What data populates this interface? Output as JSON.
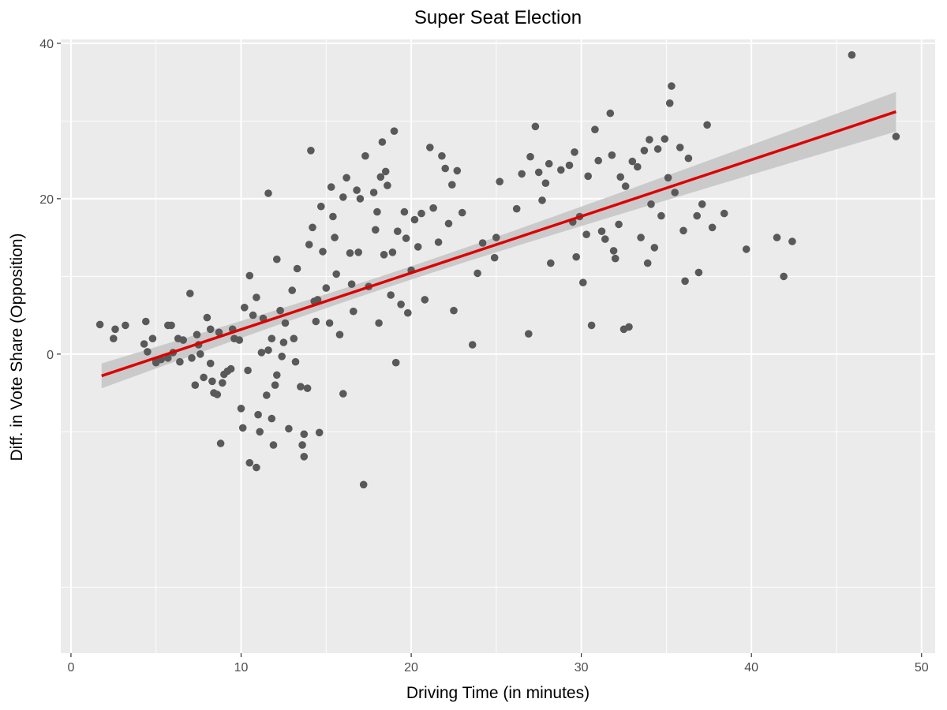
{
  "chart_data": {
    "type": "scatter",
    "title": "Super Seat Election",
    "xlabel": "Driving Time (in minutes)",
    "ylabel": "Diff. in Vote Share (Opposition)",
    "xlim": [
      -0.6,
      50.8
    ],
    "ylim": [
      -38.5,
      40.5
    ],
    "xticks": [
      0,
      10,
      20,
      30,
      40,
      50
    ],
    "yticks": [
      0,
      20,
      40
    ],
    "grid": true,
    "colors": {
      "panel": "#ebebeb",
      "grid": "#ffffff",
      "points": "#595959",
      "fit_line": "#dd0000",
      "confidence_band": "#c8c8c8"
    },
    "fit": {
      "method": "linear",
      "x": [
        1.8,
        48.5
      ],
      "y": [
        -2.8,
        31.2
      ],
      "ci_lower": [
        -4.4,
        28.7
      ],
      "ci_upper": [
        -1.2,
        33.8
      ]
    },
    "points": [
      [
        1.7,
        3.8
      ],
      [
        2.5,
        2.0
      ],
      [
        2.6,
        3.2
      ],
      [
        3.2,
        3.7
      ],
      [
        4.3,
        1.3
      ],
      [
        4.4,
        4.2
      ],
      [
        4.5,
        0.3
      ],
      [
        4.8,
        2.0
      ],
      [
        5.0,
        -0.8
      ],
      [
        5.0,
        -1.1
      ],
      [
        5.3,
        -0.7
      ],
      [
        5.7,
        3.7
      ],
      [
        5.7,
        -0.5
      ],
      [
        5.9,
        3.7
      ],
      [
        6.0,
        0.2
      ],
      [
        6.3,
        2.0
      ],
      [
        6.4,
        -1.0
      ],
      [
        6.6,
        1.8
      ],
      [
        7.0,
        7.8
      ],
      [
        7.1,
        -0.5
      ],
      [
        7.3,
        -4.0
      ],
      [
        7.4,
        2.5
      ],
      [
        7.5,
        1.2
      ],
      [
        7.6,
        0.0
      ],
      [
        7.8,
        -3.0
      ],
      [
        8.0,
        4.7
      ],
      [
        8.2,
        3.2
      ],
      [
        8.2,
        -1.2
      ],
      [
        8.3,
        -3.5
      ],
      [
        8.4,
        -5.0
      ],
      [
        8.6,
        -5.2
      ],
      [
        8.7,
        2.8
      ],
      [
        8.8,
        -11.5
      ],
      [
        8.9,
        -3.7
      ],
      [
        9.0,
        -2.6
      ],
      [
        9.2,
        -2.2
      ],
      [
        9.4,
        -1.9
      ],
      [
        9.5,
        3.2
      ],
      [
        9.6,
        2.0
      ],
      [
        9.9,
        1.8
      ],
      [
        10.0,
        -7.0
      ],
      [
        10.1,
        -9.5
      ],
      [
        10.2,
        6.0
      ],
      [
        10.4,
        -2.1
      ],
      [
        10.5,
        10.1
      ],
      [
        10.5,
        -14.0
      ],
      [
        10.7,
        5.0
      ],
      [
        10.9,
        7.3
      ],
      [
        10.9,
        -14.6
      ],
      [
        11.0,
        -7.8
      ],
      [
        11.1,
        -10.0
      ],
      [
        11.2,
        0.2
      ],
      [
        11.3,
        4.6
      ],
      [
        11.5,
        -5.3
      ],
      [
        11.6,
        0.5
      ],
      [
        11.6,
        20.7
      ],
      [
        11.8,
        2.0
      ],
      [
        11.8,
        -8.3
      ],
      [
        11.9,
        -11.7
      ],
      [
        12.0,
        -4.0
      ],
      [
        12.1,
        -2.7
      ],
      [
        12.1,
        12.2
      ],
      [
        12.3,
        5.6
      ],
      [
        12.4,
        -0.3
      ],
      [
        12.5,
        1.5
      ],
      [
        12.6,
        4.0
      ],
      [
        12.8,
        -9.6
      ],
      [
        13.0,
        8.2
      ],
      [
        13.1,
        2.0
      ],
      [
        13.2,
        -1.0
      ],
      [
        13.3,
        11.0
      ],
      [
        13.5,
        -4.2
      ],
      [
        13.6,
        -11.7
      ],
      [
        13.7,
        -13.2
      ],
      [
        13.7,
        -10.3
      ],
      [
        13.9,
        -4.4
      ],
      [
        14.0,
        14.1
      ],
      [
        14.1,
        26.2
      ],
      [
        14.2,
        16.3
      ],
      [
        14.3,
        6.8
      ],
      [
        14.4,
        4.2
      ],
      [
        14.5,
        7.0
      ],
      [
        14.6,
        -10.1
      ],
      [
        14.7,
        19.0
      ],
      [
        14.8,
        13.2
      ],
      [
        15.0,
        8.5
      ],
      [
        15.2,
        4.0
      ],
      [
        15.3,
        21.5
      ],
      [
        15.4,
        17.7
      ],
      [
        15.5,
        15.0
      ],
      [
        15.6,
        10.3
      ],
      [
        15.8,
        2.5
      ],
      [
        16.0,
        20.2
      ],
      [
        16.0,
        -5.1
      ],
      [
        16.2,
        22.7
      ],
      [
        16.4,
        13.0
      ],
      [
        16.5,
        9.0
      ],
      [
        16.6,
        5.5
      ],
      [
        16.8,
        21.1
      ],
      [
        16.9,
        13.1
      ],
      [
        17.0,
        20.0
      ],
      [
        17.2,
        -16.8
      ],
      [
        17.3,
        25.5
      ],
      [
        17.5,
        8.7
      ],
      [
        17.8,
        20.8
      ],
      [
        17.9,
        16.0
      ],
      [
        18.0,
        18.3
      ],
      [
        18.1,
        4.0
      ],
      [
        18.2,
        22.8
      ],
      [
        18.3,
        27.3
      ],
      [
        18.4,
        12.8
      ],
      [
        18.5,
        23.5
      ],
      [
        18.6,
        21.7
      ],
      [
        18.8,
        7.6
      ],
      [
        18.9,
        13.1
      ],
      [
        19.0,
        28.7
      ],
      [
        19.1,
        -1.1
      ],
      [
        19.2,
        15.8
      ],
      [
        19.4,
        6.4
      ],
      [
        19.6,
        18.3
      ],
      [
        19.7,
        14.9
      ],
      [
        19.8,
        5.3
      ],
      [
        20.0,
        10.8
      ],
      [
        20.2,
        17.3
      ],
      [
        20.4,
        13.8
      ],
      [
        20.6,
        18.1
      ],
      [
        20.8,
        7.0
      ],
      [
        21.1,
        26.6
      ],
      [
        21.3,
        18.8
      ],
      [
        21.6,
        14.4
      ],
      [
        21.8,
        25.5
      ],
      [
        22.0,
        23.9
      ],
      [
        22.2,
        16.8
      ],
      [
        22.4,
        21.8
      ],
      [
        22.5,
        5.6
      ],
      [
        22.7,
        23.6
      ],
      [
        23.0,
        18.2
      ],
      [
        23.6,
        1.2
      ],
      [
        23.9,
        10.4
      ],
      [
        24.2,
        14.3
      ],
      [
        24.9,
        12.4
      ],
      [
        25.0,
        15.0
      ],
      [
        25.2,
        22.2
      ],
      [
        26.2,
        18.7
      ],
      [
        26.5,
        23.2
      ],
      [
        26.9,
        2.6
      ],
      [
        27.0,
        25.4
      ],
      [
        27.3,
        29.3
      ],
      [
        27.5,
        23.4
      ],
      [
        27.7,
        19.8
      ],
      [
        27.9,
        22.0
      ],
      [
        28.1,
        24.5
      ],
      [
        28.2,
        11.7
      ],
      [
        28.8,
        23.7
      ],
      [
        29.3,
        24.3
      ],
      [
        29.5,
        17.0
      ],
      [
        29.6,
        26.0
      ],
      [
        29.7,
        12.5
      ],
      [
        29.9,
        17.7
      ],
      [
        30.1,
        9.2
      ],
      [
        30.3,
        15.4
      ],
      [
        30.4,
        22.9
      ],
      [
        30.6,
        3.7
      ],
      [
        30.8,
        28.9
      ],
      [
        31.0,
        24.9
      ],
      [
        31.2,
        15.8
      ],
      [
        31.4,
        14.8
      ],
      [
        31.7,
        31.0
      ],
      [
        31.8,
        25.6
      ],
      [
        31.9,
        13.3
      ],
      [
        32.0,
        12.3
      ],
      [
        32.2,
        16.7
      ],
      [
        32.3,
        22.8
      ],
      [
        32.5,
        3.2
      ],
      [
        32.6,
        21.6
      ],
      [
        32.8,
        3.5
      ],
      [
        33.0,
        24.8
      ],
      [
        33.3,
        24.1
      ],
      [
        33.5,
        15.0
      ],
      [
        33.7,
        26.2
      ],
      [
        33.9,
        11.7
      ],
      [
        34.0,
        27.6
      ],
      [
        34.1,
        19.3
      ],
      [
        34.3,
        13.7
      ],
      [
        34.5,
        26.4
      ],
      [
        34.7,
        17.8
      ],
      [
        34.9,
        27.7
      ],
      [
        35.1,
        22.7
      ],
      [
        35.2,
        32.3
      ],
      [
        35.3,
        34.5
      ],
      [
        35.5,
        20.8
      ],
      [
        35.8,
        26.6
      ],
      [
        36.0,
        15.9
      ],
      [
        36.1,
        9.4
      ],
      [
        36.3,
        25.2
      ],
      [
        36.8,
        17.8
      ],
      [
        36.9,
        10.5
      ],
      [
        37.1,
        19.3
      ],
      [
        37.4,
        29.5
      ],
      [
        37.7,
        16.3
      ],
      [
        38.4,
        18.1
      ],
      [
        39.7,
        13.5
      ],
      [
        41.5,
        15.0
      ],
      [
        41.9,
        10.0
      ],
      [
        42.4,
        14.5
      ],
      [
        45.9,
        38.5
      ],
      [
        48.5,
        28.0
      ]
    ]
  }
}
